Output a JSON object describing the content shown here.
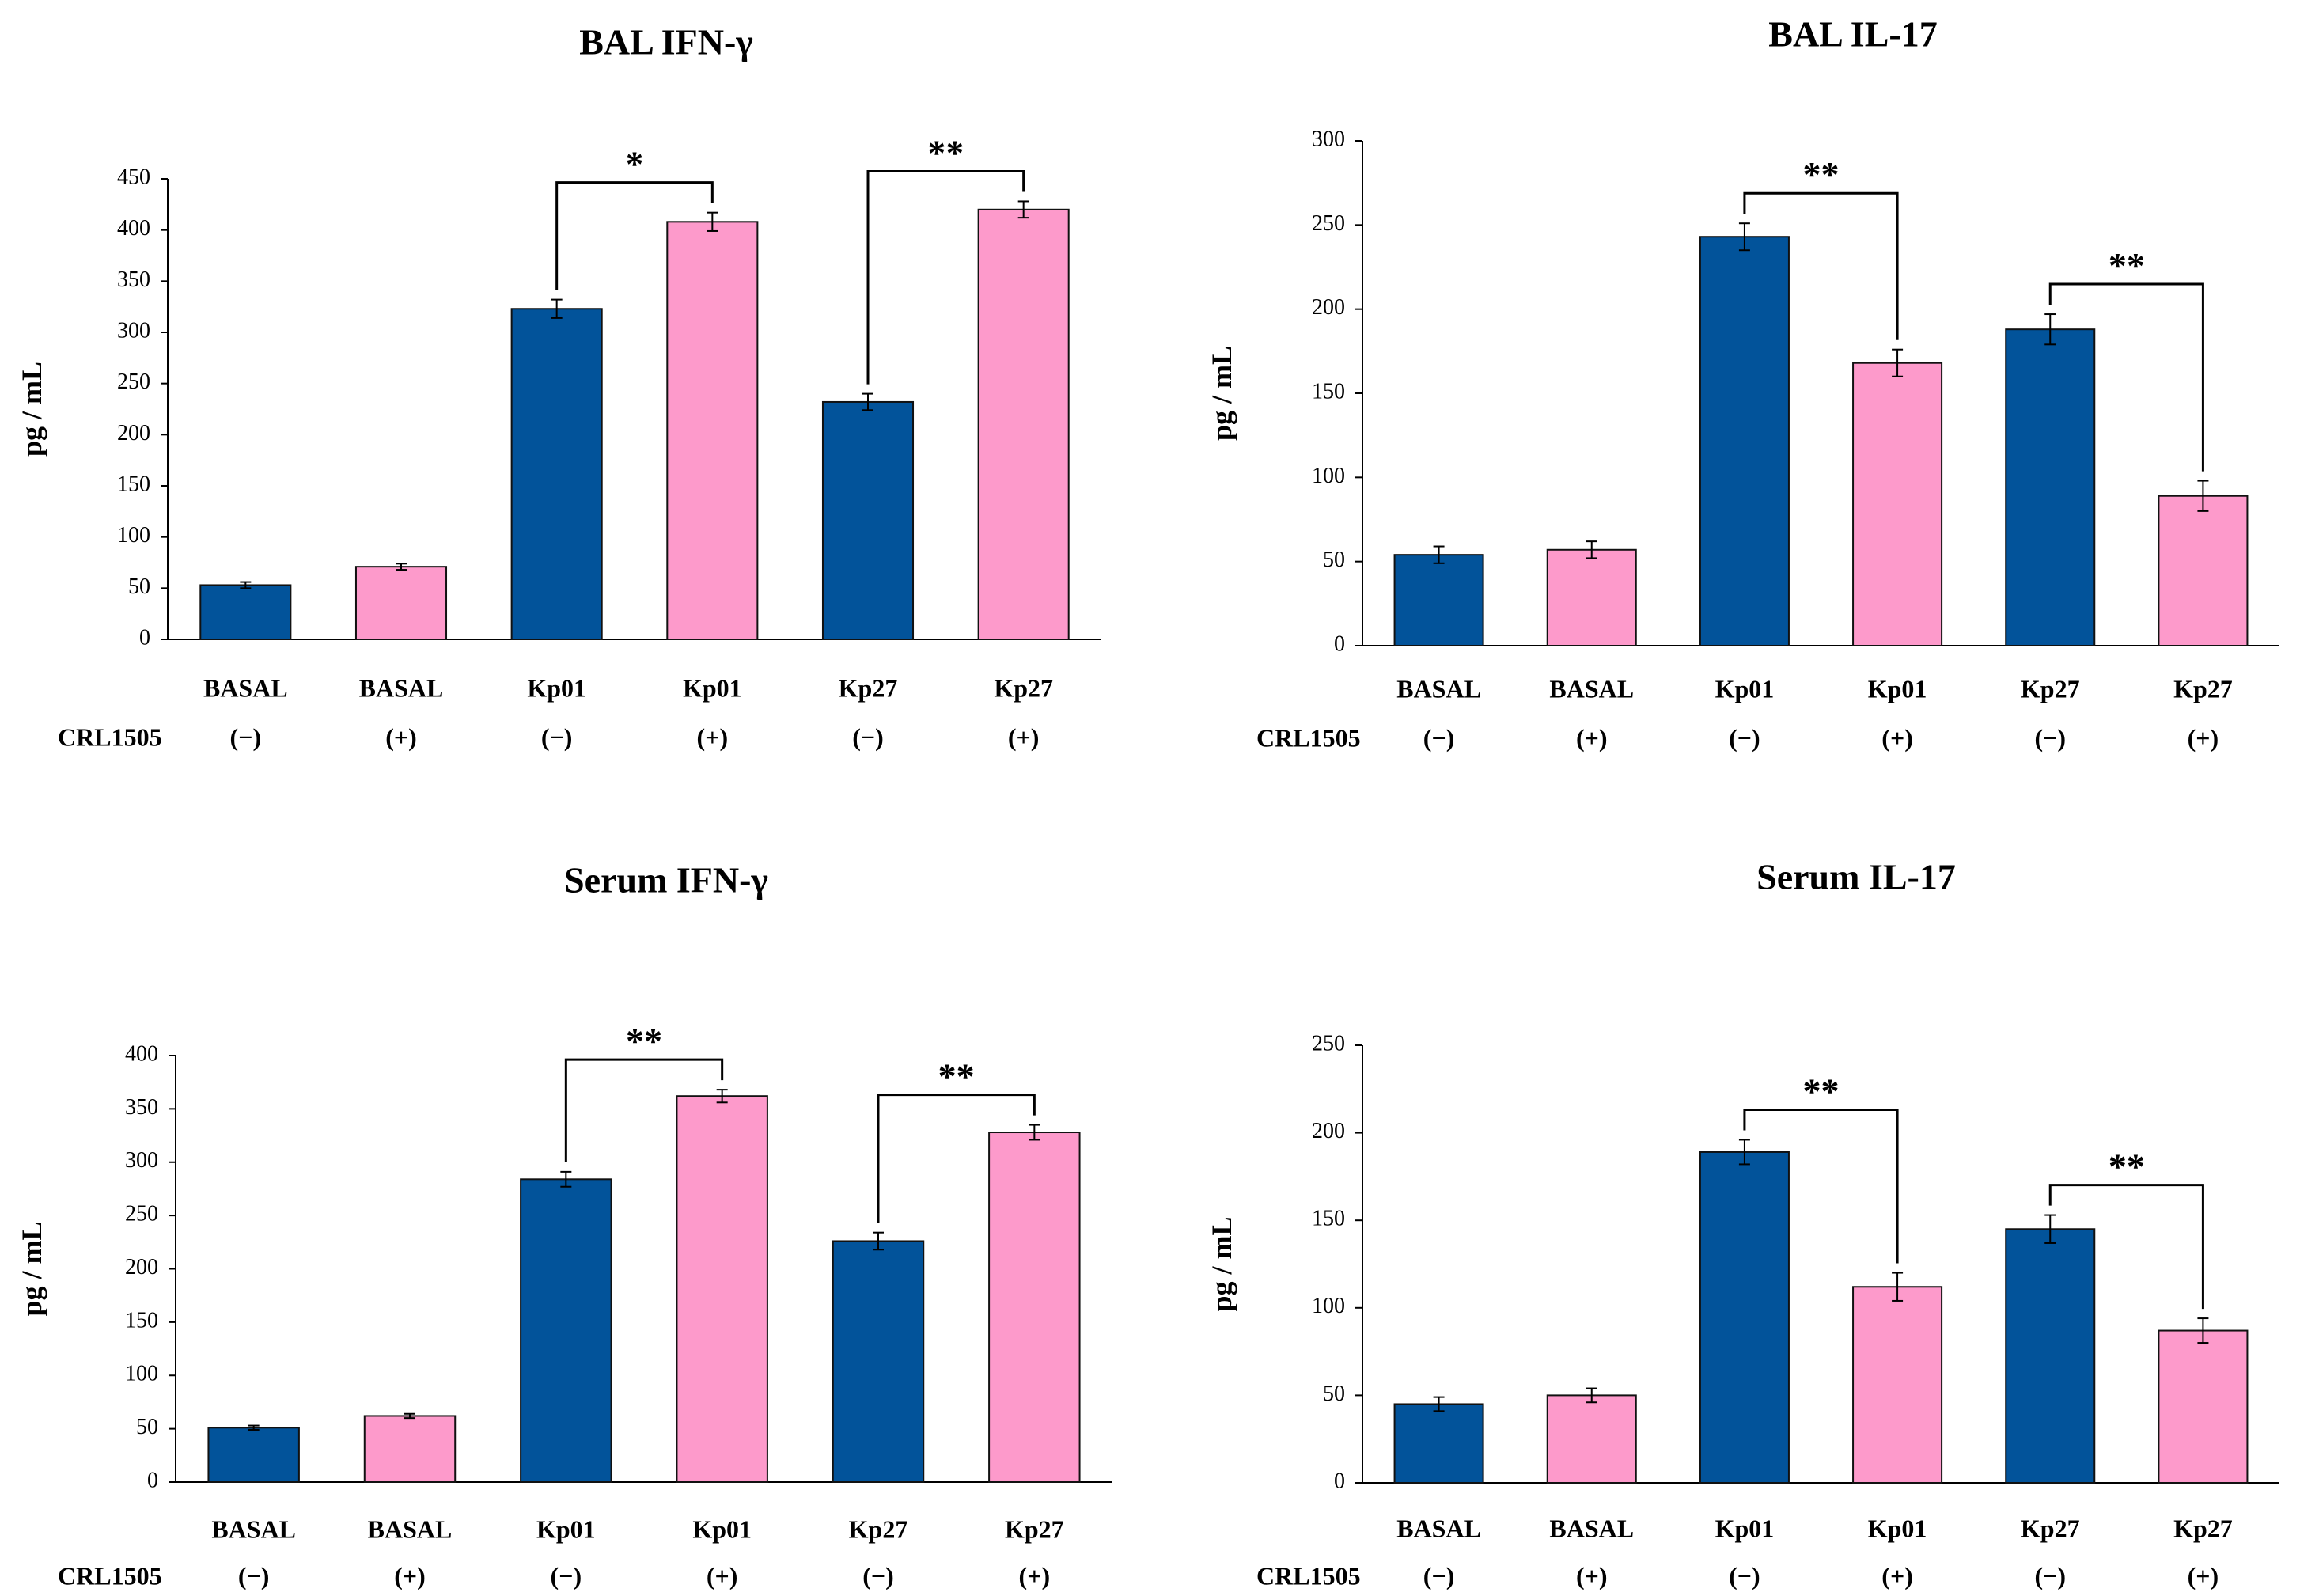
{
  "colors": {
    "negative": "#02539A",
    "positive": "#FD9ACB",
    "outline": "#111111",
    "axis": "#000000"
  },
  "chart_data": [
    {
      "type": "bar",
      "title": "BAL IFN-γ",
      "ylabel": "pg / mL",
      "ylim": [
        0,
        450
      ],
      "yticks": [
        0,
        50,
        100,
        150,
        200,
        250,
        300,
        350,
        400,
        450
      ],
      "row_label": "CRL1505",
      "categories": [
        "BASAL",
        "BASAL",
        "Kp01",
        "Kp01",
        "Kp27",
        "Kp27"
      ],
      "treatment": [
        "(−)",
        "(+)",
        "(−)",
        "(+)",
        "(−)",
        "(+)"
      ],
      "values": [
        53,
        71,
        323,
        408,
        232,
        420
      ],
      "errors": [
        3,
        3,
        9,
        9,
        8,
        8
      ],
      "significance": [
        {
          "from": 2,
          "to": 3,
          "label": "*"
        },
        {
          "from": 4,
          "to": 5,
          "label": "**"
        }
      ]
    },
    {
      "type": "bar",
      "title": "BAL IL-17",
      "ylabel": "pg / mL",
      "ylim": [
        0,
        300
      ],
      "yticks": [
        0,
        50,
        100,
        150,
        200,
        250,
        300
      ],
      "row_label": "CRL1505",
      "categories": [
        "BASAL",
        "BASAL",
        "Kp01",
        "Kp01",
        "Kp27",
        "Kp27"
      ],
      "treatment": [
        "(−)",
        "(+)",
        "(−)",
        "(+)",
        "(−)",
        "(+)"
      ],
      "values": [
        54,
        57,
        243,
        168,
        188,
        89
      ],
      "errors": [
        5,
        5,
        8,
        8,
        9,
        9
      ],
      "significance": [
        {
          "from": 2,
          "to": 3,
          "label": "**"
        },
        {
          "from": 4,
          "to": 5,
          "label": "**"
        }
      ]
    },
    {
      "type": "bar",
      "title": "Serum IFN-γ",
      "ylabel": "pg / mL",
      "ylim": [
        0,
        400
      ],
      "yticks": [
        0,
        50,
        100,
        150,
        200,
        250,
        300,
        350,
        400
      ],
      "row_label": "CRL1505",
      "categories": [
        "BASAL",
        "BASAL",
        "Kp01",
        "Kp01",
        "Kp27",
        "Kp27"
      ],
      "treatment": [
        "(−)",
        "(+)",
        "(−)",
        "(+)",
        "(−)",
        "(+)"
      ],
      "values": [
        51,
        62,
        284,
        362,
        226,
        328
      ],
      "errors": [
        2,
        2,
        7,
        6,
        8,
        7
      ],
      "significance": [
        {
          "from": 2,
          "to": 3,
          "label": "**"
        },
        {
          "from": 4,
          "to": 5,
          "label": "**"
        }
      ]
    },
    {
      "type": "bar",
      "title": "Serum IL-17",
      "ylabel": "pg / mL",
      "ylim": [
        0,
        250
      ],
      "yticks": [
        0,
        50,
        100,
        150,
        200,
        250
      ],
      "row_label": "CRL1505",
      "categories": [
        "BASAL",
        "BASAL",
        "Kp01",
        "Kp01",
        "Kp27",
        "Kp27"
      ],
      "treatment": [
        "(−)",
        "(+)",
        "(−)",
        "(+)",
        "(−)",
        "(+)"
      ],
      "values": [
        45,
        50,
        189,
        112,
        145,
        87
      ],
      "errors": [
        4,
        4,
        7,
        8,
        8,
        7
      ],
      "significance": [
        {
          "from": 2,
          "to": 3,
          "label": "**"
        },
        {
          "from": 4,
          "to": 5,
          "label": "**"
        }
      ]
    }
  ]
}
